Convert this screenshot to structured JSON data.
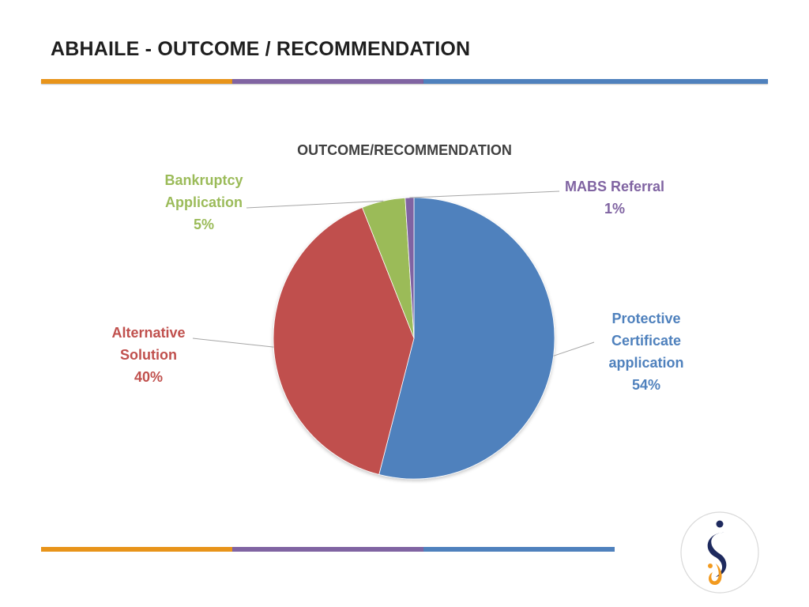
{
  "slide": {
    "title": "ABHAILE - OUTCOME / RECOMMENDATION"
  },
  "colors": {
    "orange": "#E8941A",
    "purple": "#8064A2",
    "blue": "#4F81BD",
    "red": "#C0504D",
    "green": "#9BBB59",
    "logo_navy": "#1E2A5E",
    "logo_orange": "#F29A1F"
  },
  "logo": {
    "icon": "s-figure-logo-icon"
  },
  "chart_data": {
    "type": "pie",
    "title": "OUTCOME/RECOMMENDATION",
    "slices": [
      {
        "name": "Protective Certificate application",
        "label_lines": [
          "Protective",
          "Certificate",
          "application"
        ],
        "value": 54,
        "value_label": "54%",
        "color": "#4F81BD"
      },
      {
        "name": "Alternative Solution",
        "label_lines": [
          "Alternative",
          "Solution"
        ],
        "value": 40,
        "value_label": "40%",
        "color": "#C0504D"
      },
      {
        "name": "Bankruptcy Application",
        "label_lines": [
          "Bankruptcy",
          "Application"
        ],
        "value": 5,
        "value_label": "5%",
        "color": "#9BBB59"
      },
      {
        "name": "MABS Referral",
        "label_lines": [
          "MABS Referral"
        ],
        "value": 1,
        "value_label": "1%",
        "color": "#8064A2"
      }
    ],
    "start_angle_deg": 0,
    "direction": "clockwise",
    "legend": "none",
    "data_labels": "outside-with-leader-lines"
  }
}
